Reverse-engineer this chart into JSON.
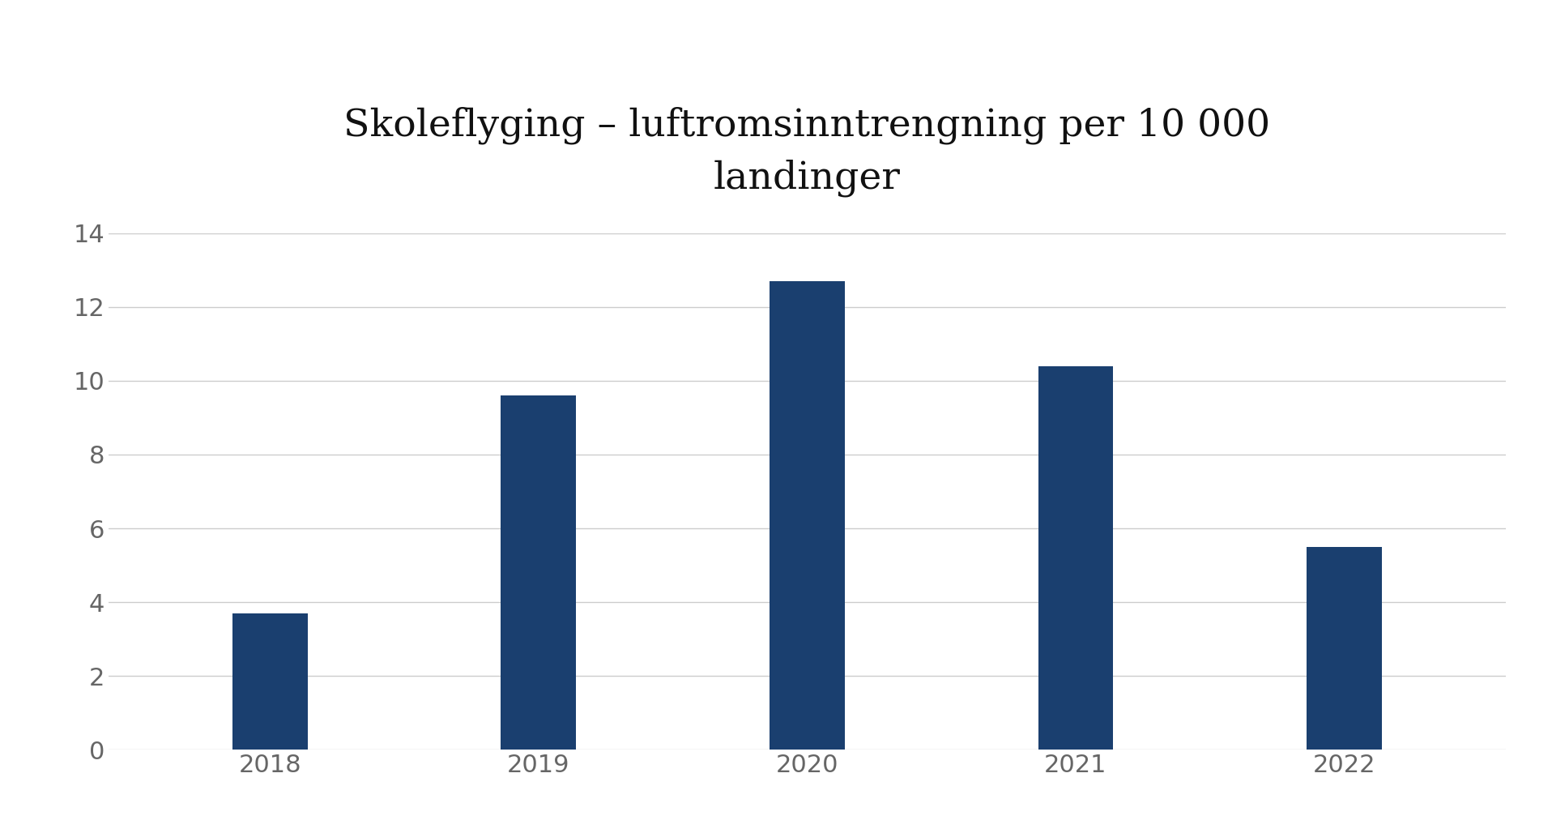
{
  "title": "Skoleflyging – luftromsinntrengning per 10 000\nlandinger",
  "categories": [
    "2018",
    "2019",
    "2020",
    "2021",
    "2022"
  ],
  "values": [
    3.7,
    9.6,
    12.7,
    10.4,
    5.5
  ],
  "bar_color": "#1a3f6f",
  "background_color": "#ffffff",
  "ylim": [
    0,
    14
  ],
  "yticks": [
    0,
    2,
    4,
    6,
    8,
    10,
    12,
    14
  ],
  "grid_color": "#cccccc",
  "tick_label_color": "#666666",
  "title_fontsize": 34,
  "tick_fontsize": 22,
  "bar_width": 0.28
}
